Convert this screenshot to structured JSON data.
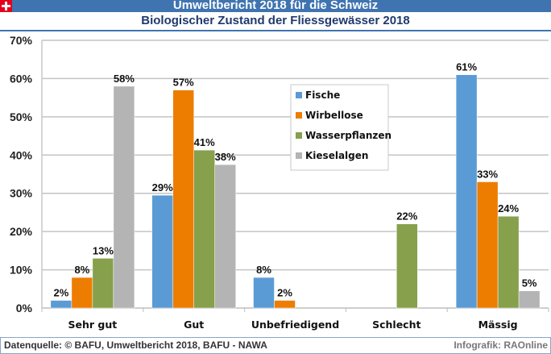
{
  "header": {
    "title": "Umweltbericht 2018 für die Schweiz",
    "flag_icon": "swiss-flag-icon"
  },
  "footer": {
    "source": "Datenquelle: © BAFU, Umweltbericht 2018, BAFU - NAWA",
    "credit": "Infografik: RAOnline"
  },
  "chart_data": {
    "type": "bar",
    "title": "Biologischer Zustand der Fliessgewässer 2018",
    "xlabel": "",
    "ylabel": "",
    "categories": [
      "Sehr gut",
      "Gut",
      "Unbefriedigend",
      "Schlecht",
      "Mässig"
    ],
    "series": [
      {
        "name": "Fische",
        "color": "#5b9bd5",
        "values": [
          2,
          29,
          8,
          null,
          61
        ]
      },
      {
        "name": "Wirbellose",
        "color": "#ed7d00",
        "values": [
          8,
          57,
          2,
          null,
          33
        ]
      },
      {
        "name": "Wasserpflanzen",
        "color": "#86a04c",
        "values": [
          13,
          41,
          null,
          22,
          24
        ]
      },
      {
        "name": "Kieselalgen",
        "color": "#b4b4b4",
        "values": [
          58,
          38,
          null,
          null,
          5
        ]
      }
    ],
    "bar_heights_approx": {
      "Gut": [
        29.5,
        57,
        41.3,
        37.5
      ],
      "Mässig": [
        61,
        33,
        24,
        4.5
      ]
    },
    "ylim": [
      0,
      70
    ],
    "yticks": [
      0,
      10,
      20,
      30,
      40,
      50,
      60,
      70
    ],
    "ytick_labels": [
      "0%",
      "10%",
      "20%",
      "30%",
      "40%",
      "50%",
      "60%",
      "70%"
    ],
    "data_label_suffix": "%",
    "grid": "horizontal",
    "legend": {
      "placement": "center-top",
      "entries": [
        "Fische",
        "Wirbellose",
        "Wasserpflanzen",
        "Kieselalgen"
      ]
    }
  }
}
